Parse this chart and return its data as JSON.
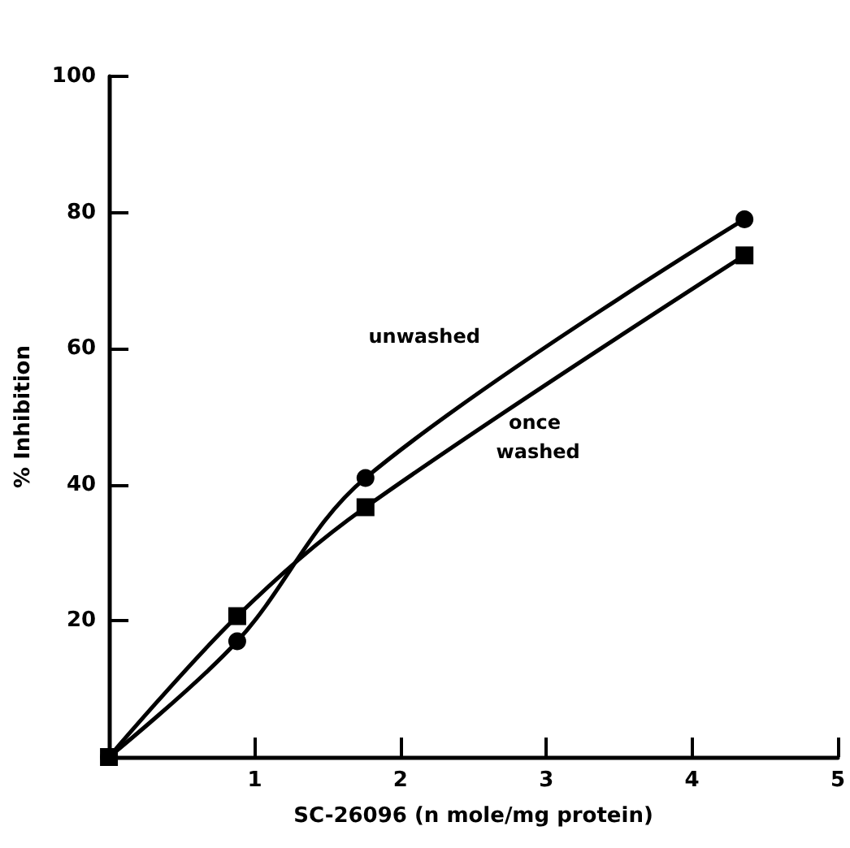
{
  "chart_data": {
    "type": "line",
    "xlabel": "SC-26096 (n mole/mg protein)",
    "ylabel": "% Inhibition",
    "xlim": [
      0,
      5
    ],
    "xticks": [
      1,
      2,
      3,
      4,
      5
    ],
    "ylim": [
      0,
      100
    ],
    "yticks": [
      20,
      40,
      60,
      80,
      100
    ],
    "grid": false,
    "series": [
      {
        "name": "unwashed",
        "color": "#000000",
        "marker": "circle",
        "x": [
          0,
          0.88,
          1.76,
          4.36
        ],
        "values": [
          0,
          17,
          41,
          79
        ]
      },
      {
        "name": "once washed",
        "color": "#000000",
        "marker": "square",
        "x": [
          0,
          0.88,
          1.76,
          4.36
        ],
        "values": [
          0,
          20.7,
          36.7,
          73.7
        ]
      }
    ]
  }
}
